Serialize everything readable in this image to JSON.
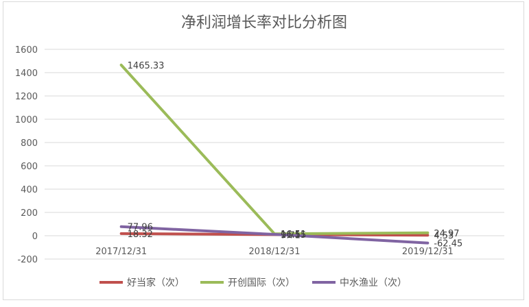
{
  "chart_data": {
    "type": "line",
    "title": "净利润增长率对比分析图",
    "xlabel": "",
    "ylabel": "",
    "categories": [
      "2017/12/31",
      "2018/12/31",
      "2019/12/31"
    ],
    "ylim": [
      -200,
      1600
    ],
    "yticks": [
      -200,
      0,
      200,
      400,
      600,
      800,
      1000,
      1200,
      1400,
      1600
    ],
    "grid": true,
    "legend_position": "bottom",
    "series": [
      {
        "name": "好当家（次）",
        "color": "#c0504d",
        "values": [
          18.32,
          9.71,
          4.53
        ],
        "labels": [
          "18.32",
          "9.71",
          "4.53"
        ]
      },
      {
        "name": "开创国际（次）",
        "color": "#9bbb59",
        "values": [
          1465.33,
          16.51,
          24.97
        ],
        "labels": [
          "1465.33",
          "16.51",
          "24.97"
        ]
      },
      {
        "name": "中水渔业（次）",
        "color": "#8064a2",
        "values": [
          77.96,
          11.55,
          -62.45
        ],
        "labels": [
          "77.96",
          "11.55",
          "-62.45"
        ]
      }
    ]
  }
}
